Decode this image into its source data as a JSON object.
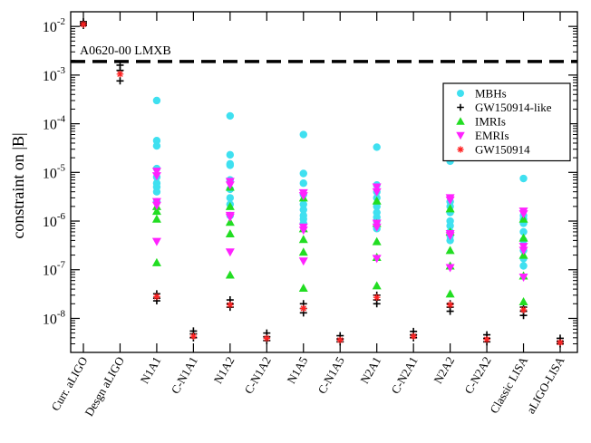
{
  "chart_data": {
    "type": "scatter",
    "ylabel": "constraint on |B|",
    "yscale": "log",
    "ylim": [
      2e-09,
      0.02
    ],
    "categories": [
      "Curr. aLIGO",
      "Desgn aLIGO",
      "N1A1",
      "C-N1A1",
      "N1A2",
      "C-N1A2",
      "N1A5",
      "C-N1A5",
      "N2A1",
      "C-N2A1",
      "N2A2",
      "C-N2A2",
      "Classic LISA",
      "aLIGO-LISA"
    ],
    "y_ticks": [
      {
        "value": 1e-08,
        "base": "10",
        "exp": "-8"
      },
      {
        "value": 1e-07,
        "base": "10",
        "exp": "-7"
      },
      {
        "value": 1e-06,
        "base": "10",
        "exp": "-6"
      },
      {
        "value": 1e-05,
        "base": "10",
        "exp": "-5"
      },
      {
        "value": 0.0001,
        "base": "10",
        "exp": "-4"
      },
      {
        "value": 0.001,
        "base": "10",
        "exp": "-3"
      },
      {
        "value": 0.01,
        "base": "10",
        "exp": "-2"
      }
    ],
    "reference_line": {
      "label": "A0620-00 LMXB",
      "value": 0.0019
    },
    "legend_position": "top-right",
    "series": [
      {
        "name": "MBHs",
        "marker": "circle",
        "color": "#3fe0f0",
        "points": [
          {
            "cat": "N1A1",
            "y": [
              0.0003,
              4.5e-05,
              3.5e-05,
              1.2e-05,
              8e-06,
              6e-06,
              5e-06,
              4e-06,
              2.5e-06
            ]
          },
          {
            "cat": "N1A2",
            "y": [
              0.000145,
              2.3e-05,
              1.5e-05,
              1.4e-05,
              7e-06,
              4.5e-06,
              3e-06,
              2.2e-06,
              1.3e-06
            ]
          },
          {
            "cat": "N1A5",
            "y": [
              6e-05,
              9.5e-06,
              6e-06,
              3.5e-06,
              2.2e-06,
              1.7e-06,
              1.3e-06,
              1.1e-06,
              9e-07
            ]
          },
          {
            "cat": "N2A1",
            "y": [
              3.3e-05,
              5.5e-06,
              4e-06,
              3e-06,
              2e-06,
              1.5e-06,
              1.2e-06,
              1e-06,
              7e-07
            ]
          },
          {
            "cat": "N2A2",
            "y": [
              1.7e-05,
              2.5e-06,
              2e-06,
              1.5e-06,
              1e-06,
              8e-07,
              6e-07,
              5e-07,
              4e-07
            ]
          },
          {
            "cat": "Classic LISA",
            "y": [
              7.5e-06,
              1.3e-06,
              1.1e-06,
              9e-07,
              6e-07,
              4e-07,
              2.5e-07,
              1.7e-07,
              1.2e-07
            ]
          }
        ]
      },
      {
        "name": "GW150914-like",
        "marker": "plus",
        "color": "#000000",
        "points": [
          {
            "cat": "Curr. aLIGO",
            "y": [
              0.0125,
              0.0115,
              0.0105
            ]
          },
          {
            "cat": "Desgn aLIGO",
            "y": [
              0.0016,
              0.00125,
              0.00076
            ]
          },
          {
            "cat": "N1A1",
            "y": [
              3.2e-08,
              2.6e-08,
              2.3e-08
            ]
          },
          {
            "cat": "C-N1A1",
            "y": [
              5.5e-09,
              4.8e-09,
              4e-09
            ]
          },
          {
            "cat": "N1A2",
            "y": [
              2.4e-08,
              2e-08,
              1.7e-08
            ]
          },
          {
            "cat": "C-N1A2",
            "y": [
              5e-09,
              4.2e-09,
              3.5e-09
            ]
          },
          {
            "cat": "N1A5",
            "y": [
              2e-08,
              1.6e-08,
              1.3e-08
            ]
          },
          {
            "cat": "C-N1A5",
            "y": [
              4.4e-09,
              3.8e-09,
              3.3e-09
            ]
          },
          {
            "cat": "N2A1",
            "y": [
              3e-08,
              2.4e-08,
              2e-08
            ]
          },
          {
            "cat": "C-N2A1",
            "y": [
              5.4e-09,
              4.6e-09,
              4e-09
            ]
          },
          {
            "cat": "N2A2",
            "y": [
              2e-08,
              1.7e-08,
              1.4e-08
            ]
          },
          {
            "cat": "C-N2A2",
            "y": [
              4.6e-09,
              3.9e-09,
              3.3e-09
            ]
          },
          {
            "cat": "Classic LISA",
            "y": [
              1.7e-08,
              1.4e-08,
              1.15e-08
            ]
          },
          {
            "cat": "aLIGO-LISA",
            "y": [
              3.9e-09,
              3.4e-09,
              3e-09
            ]
          }
        ]
      },
      {
        "name": "IMRIs",
        "marker": "triangle-up",
        "color": "#22dd22",
        "points": [
          {
            "cat": "N1A1",
            "y": [
              2e-06,
              1.6e-06,
              1.1e-06,
              1.4e-07
            ]
          },
          {
            "cat": "N1A2",
            "y": [
              5e-06,
              2e-06,
              9.5e-07,
              5.5e-07,
              7.8e-08
            ]
          },
          {
            "cat": "N1A5",
            "y": [
              3e-06,
              7e-07,
              4.2e-07,
              2.3e-07,
              4.2e-08
            ]
          },
          {
            "cat": "N2A1",
            "y": [
              2.6e-06,
              9e-07,
              3.8e-07,
              1.8e-07,
              4.7e-08
            ]
          },
          {
            "cat": "N2A2",
            "y": [
              1.8e-06,
              6e-07,
              2.5e-07,
              1.2e-07,
              3.2e-08
            ]
          },
          {
            "cat": "Classic LISA",
            "y": [
              1.1e-06,
              4.5e-07,
              2e-07,
              7.5e-08,
              2.2e-08
            ]
          }
        ]
      },
      {
        "name": "EMRIs",
        "marker": "triangle-down",
        "color": "#ff22ff",
        "points": [
          {
            "cat": "N1A1",
            "y": [
              1.05e-05,
              8.5e-06,
              2.5e-06,
              2.1e-06,
              3.8e-07
            ]
          },
          {
            "cat": "N1A2",
            "y": [
              6.5e-06,
              5.5e-06,
              1.3e-06,
              1.2e-06,
              2.3e-07
            ]
          },
          {
            "cat": "N1A5",
            "y": [
              3.8e-06,
              3.3e-06,
              7.5e-07,
              6.5e-07,
              1.5e-07
            ]
          },
          {
            "cat": "N2A1",
            "y": [
              5e-06,
              4e-06,
              9e-07,
              7.5e-07,
              1.7e-07
            ]
          },
          {
            "cat": "N2A2",
            "y": [
              3e-06,
              2.7e-06,
              5.5e-07,
              5e-07,
              1.1e-07
            ]
          },
          {
            "cat": "Classic LISA",
            "y": [
              1.6e-06,
              1.4e-06,
              3e-07,
              2.5e-07,
              7e-08
            ]
          }
        ]
      },
      {
        "name": "GW150914",
        "marker": "asterisk",
        "color": "#ff2222",
        "points": [
          {
            "cat": "Curr. aLIGO",
            "y": [
              0.011
            ]
          },
          {
            "cat": "Desgn aLIGO",
            "y": [
              0.00105
            ]
          },
          {
            "cat": "N1A1",
            "y": [
              2.8e-08
            ]
          },
          {
            "cat": "C-N1A1",
            "y": [
              4.3e-09
            ]
          },
          {
            "cat": "N1A2",
            "y": [
              1.9e-08
            ]
          },
          {
            "cat": "C-N1A2",
            "y": [
              3.9e-09
            ]
          },
          {
            "cat": "N1A5",
            "y": [
              1.6e-08
            ]
          },
          {
            "cat": "C-N1A5",
            "y": [
              3.6e-09
            ]
          },
          {
            "cat": "N2A1",
            "y": [
              2.7e-08
            ]
          },
          {
            "cat": "C-N2A1",
            "y": [
              4.3e-09
            ]
          },
          {
            "cat": "N2A2",
            "y": [
              1.9e-08
            ]
          },
          {
            "cat": "C-N2A2",
            "y": [
              3.7e-09
            ]
          },
          {
            "cat": "Classic LISA",
            "y": [
              1.5e-08
            ]
          },
          {
            "cat": "aLIGO-LISA",
            "y": [
              3.2e-09
            ]
          }
        ]
      }
    ]
  }
}
